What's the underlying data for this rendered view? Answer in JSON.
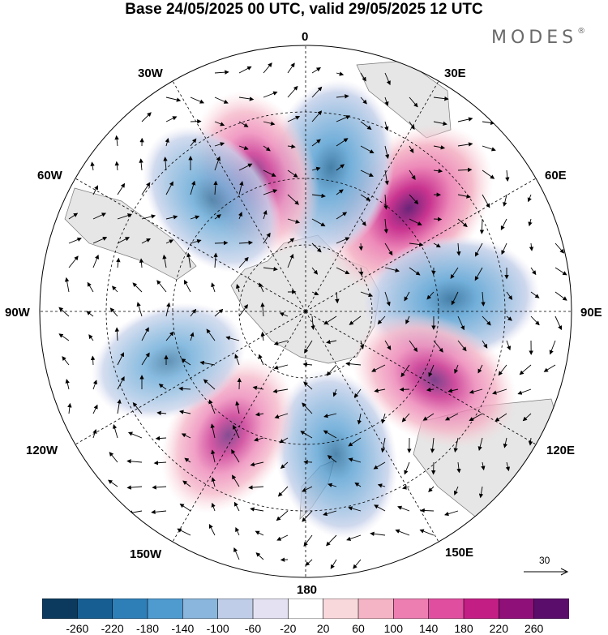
{
  "title": "Base 24/05/2025 00 UTC, valid 29/05/2025 12 UTC",
  "brand": {
    "name": "MODES",
    "mark": "®"
  },
  "longitude_labels": {
    "lon_0": "0",
    "lon_30e": "30E",
    "lon_60e": "60E",
    "lon_90e": "90E",
    "lon_120e": "120E",
    "lon_150e": "150E",
    "lon_180": "180",
    "lon_150w": "150W",
    "lon_120w": "120W",
    "lon_90w": "90W",
    "lon_60w": "60W",
    "lon_30w": "30W"
  },
  "vector_reference": {
    "label": "30"
  },
  "colorbar": {
    "ticks": [
      "-260",
      "-220",
      "-180",
      "-140",
      "-100",
      "-60",
      "-20",
      "20",
      "60",
      "100",
      "140",
      "180",
      "220",
      "260"
    ],
    "colors": [
      "#0b3a5e",
      "#175f92",
      "#2e7fb8",
      "#4f9bd0",
      "#8ab5dc",
      "#c0cde8",
      "#e4e2f2",
      "#ffffff",
      "#f9d8dc",
      "#f4b4c6",
      "#ec7eb2",
      "#e04f9f",
      "#c31e84",
      "#90107a",
      "#5a0d6b"
    ]
  },
  "map_features": {
    "projection": "south-polar-stereographic",
    "field": "anomaly-shading",
    "anomaly_centers": [
      {
        "sign": "positive",
        "strength": 1.0,
        "lon_deg": 45
      },
      {
        "sign": "negative",
        "strength": 0.75,
        "lon_deg": 10
      },
      {
        "sign": "positive",
        "strength": 0.65,
        "lon_deg": -20
      },
      {
        "sign": "negative",
        "strength": 0.55,
        "lon_deg": -40
      },
      {
        "sign": "negative",
        "strength": 0.75,
        "lon_deg": 85
      },
      {
        "sign": "positive",
        "strength": 0.7,
        "lon_deg": 118
      },
      {
        "sign": "negative",
        "strength": 0.65,
        "lon_deg": 168
      },
      {
        "sign": "positive",
        "strength": 0.6,
        "lon_deg": -148
      },
      {
        "sign": "negative",
        "strength": 0.45,
        "lon_deg": -110
      }
    ]
  }
}
